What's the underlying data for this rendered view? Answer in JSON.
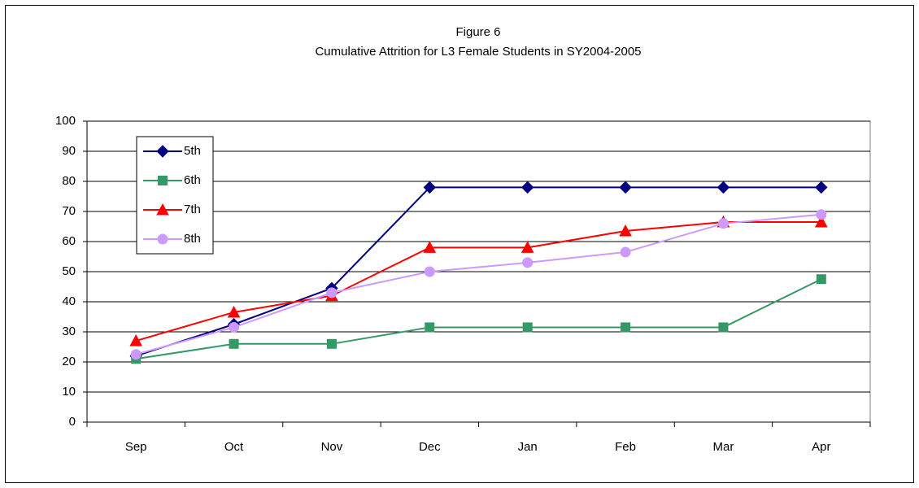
{
  "chart_data": {
    "type": "line",
    "title": "Figure 6",
    "subtitle": "Cumulative Attrition for L3 Female Students in SY2004-2005",
    "categories": [
      "Sep",
      "Oct",
      "Nov",
      "Dec",
      "Jan",
      "Feb",
      "Mar",
      "Apr"
    ],
    "series": [
      {
        "name": "5th",
        "color": "#000080",
        "marker": "diamond",
        "values": [
          22,
          32.5,
          44.5,
          78,
          78,
          78,
          78,
          78
        ]
      },
      {
        "name": "6th",
        "color": "#339966",
        "marker": "square",
        "values": [
          21,
          26,
          26,
          31.5,
          31.5,
          31.5,
          31.5,
          47.5
        ]
      },
      {
        "name": "7th",
        "color": "#ff0000",
        "marker": "triangle",
        "values": [
          27,
          36.5,
          42,
          58,
          58,
          63.5,
          66.5,
          66.5
        ]
      },
      {
        "name": "8th",
        "color": "#cc99ff",
        "marker": "circle",
        "values": [
          22.5,
          31.5,
          43,
          50,
          53,
          56.5,
          66,
          69
        ]
      }
    ],
    "ylim": [
      0,
      100
    ],
    "yticks": [
      0,
      10,
      20,
      30,
      40,
      50,
      60,
      70,
      80,
      90,
      100
    ],
    "grid": true,
    "legend": "top-left"
  }
}
